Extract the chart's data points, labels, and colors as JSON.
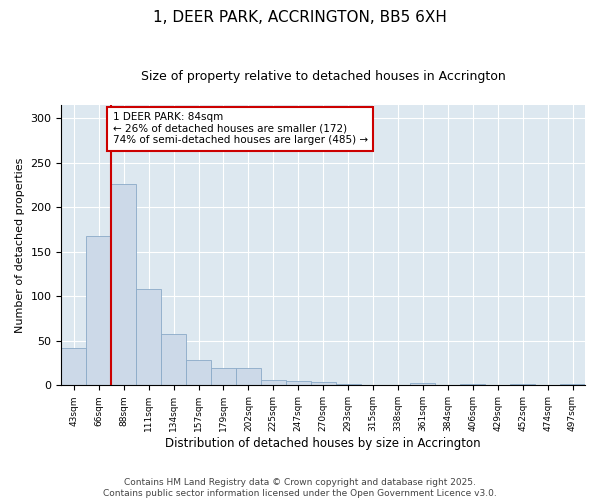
{
  "title": "1, DEER PARK, ACCRINGTON, BB5 6XH",
  "subtitle": "Size of property relative to detached houses in Accrington",
  "xlabel": "Distribution of detached houses by size in Accrington",
  "ylabel": "Number of detached properties",
  "categories": [
    "43sqm",
    "66sqm",
    "88sqm",
    "111sqm",
    "134sqm",
    "157sqm",
    "179sqm",
    "202sqm",
    "225sqm",
    "247sqm",
    "270sqm",
    "293sqm",
    "315sqm",
    "338sqm",
    "361sqm",
    "384sqm",
    "406sqm",
    "429sqm",
    "452sqm",
    "474sqm",
    "497sqm"
  ],
  "values": [
    42,
    168,
    226,
    108,
    58,
    29,
    20,
    20,
    6,
    5,
    4,
    1,
    0,
    0,
    3,
    0,
    1,
    0,
    2,
    0,
    2
  ],
  "bar_color": "#ccd9e8",
  "bar_edge_color": "#8aaac8",
  "annotation_box_text": "1 DEER PARK: 84sqm\n← 26% of detached houses are smaller (172)\n74% of semi-detached houses are larger (485) →",
  "annotation_box_color": "#cc0000",
  "vline_color": "#cc0000",
  "vline_x": 1.5,
  "ylim": [
    0,
    315
  ],
  "yticks": [
    0,
    50,
    100,
    150,
    200,
    250,
    300
  ],
  "background_color": "#dde8f0",
  "grid_color": "#ffffff",
  "footer_line1": "Contains HM Land Registry data © Crown copyright and database right 2025.",
  "footer_line2": "Contains public sector information licensed under the Open Government Licence v3.0.",
  "title_fontsize": 11,
  "subtitle_fontsize": 9,
  "annotation_fontsize": 7.5,
  "footer_fontsize": 6.5,
  "ylabel_fontsize": 8,
  "xlabel_fontsize": 8.5
}
